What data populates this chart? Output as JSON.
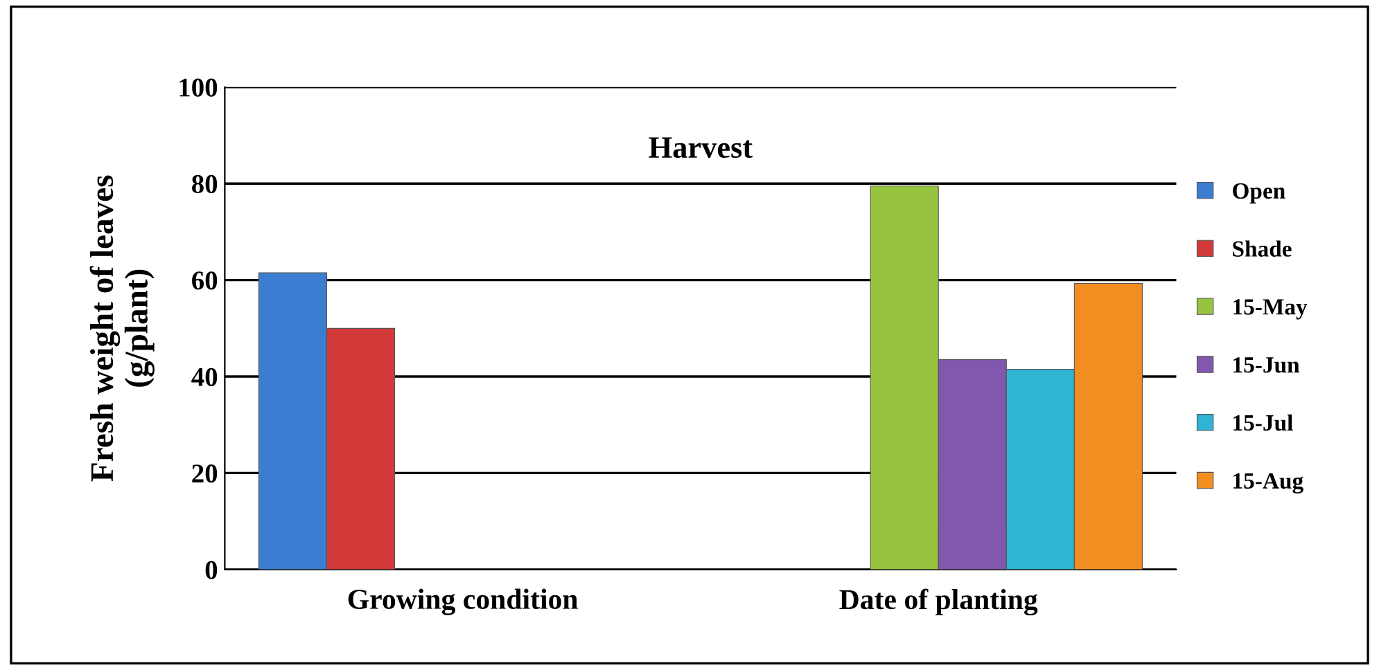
{
  "chart_data": {
    "type": "bar",
    "title": "Harvest",
    "ylabel": "Fresh weight of leaves\n(g/plant)",
    "categories": [
      "Growing condition",
      "Date of planting"
    ],
    "series": [
      {
        "name": "Open",
        "color": "#3b7dd0",
        "values": [
          61.5,
          null
        ]
      },
      {
        "name": "Shade",
        "color": "#d23a3a",
        "values": [
          50,
          null
        ]
      },
      {
        "name": "15-May",
        "color": "#96c43e",
        "values": [
          null,
          79.5
        ]
      },
      {
        "name": "15-Jun",
        "color": "#8257b0",
        "values": [
          null,
          43.5
        ]
      },
      {
        "name": "15-Jul",
        "color": "#2fb5d3",
        "values": [
          null,
          41.5
        ]
      },
      {
        "name": "15-Aug",
        "color": "#f28d22",
        "values": [
          null,
          59.3
        ]
      }
    ],
    "ylim": [
      0,
      100
    ],
    "yticks": [
      0,
      20,
      40,
      60,
      80,
      100
    ],
    "grid": "y",
    "legend": "right"
  }
}
